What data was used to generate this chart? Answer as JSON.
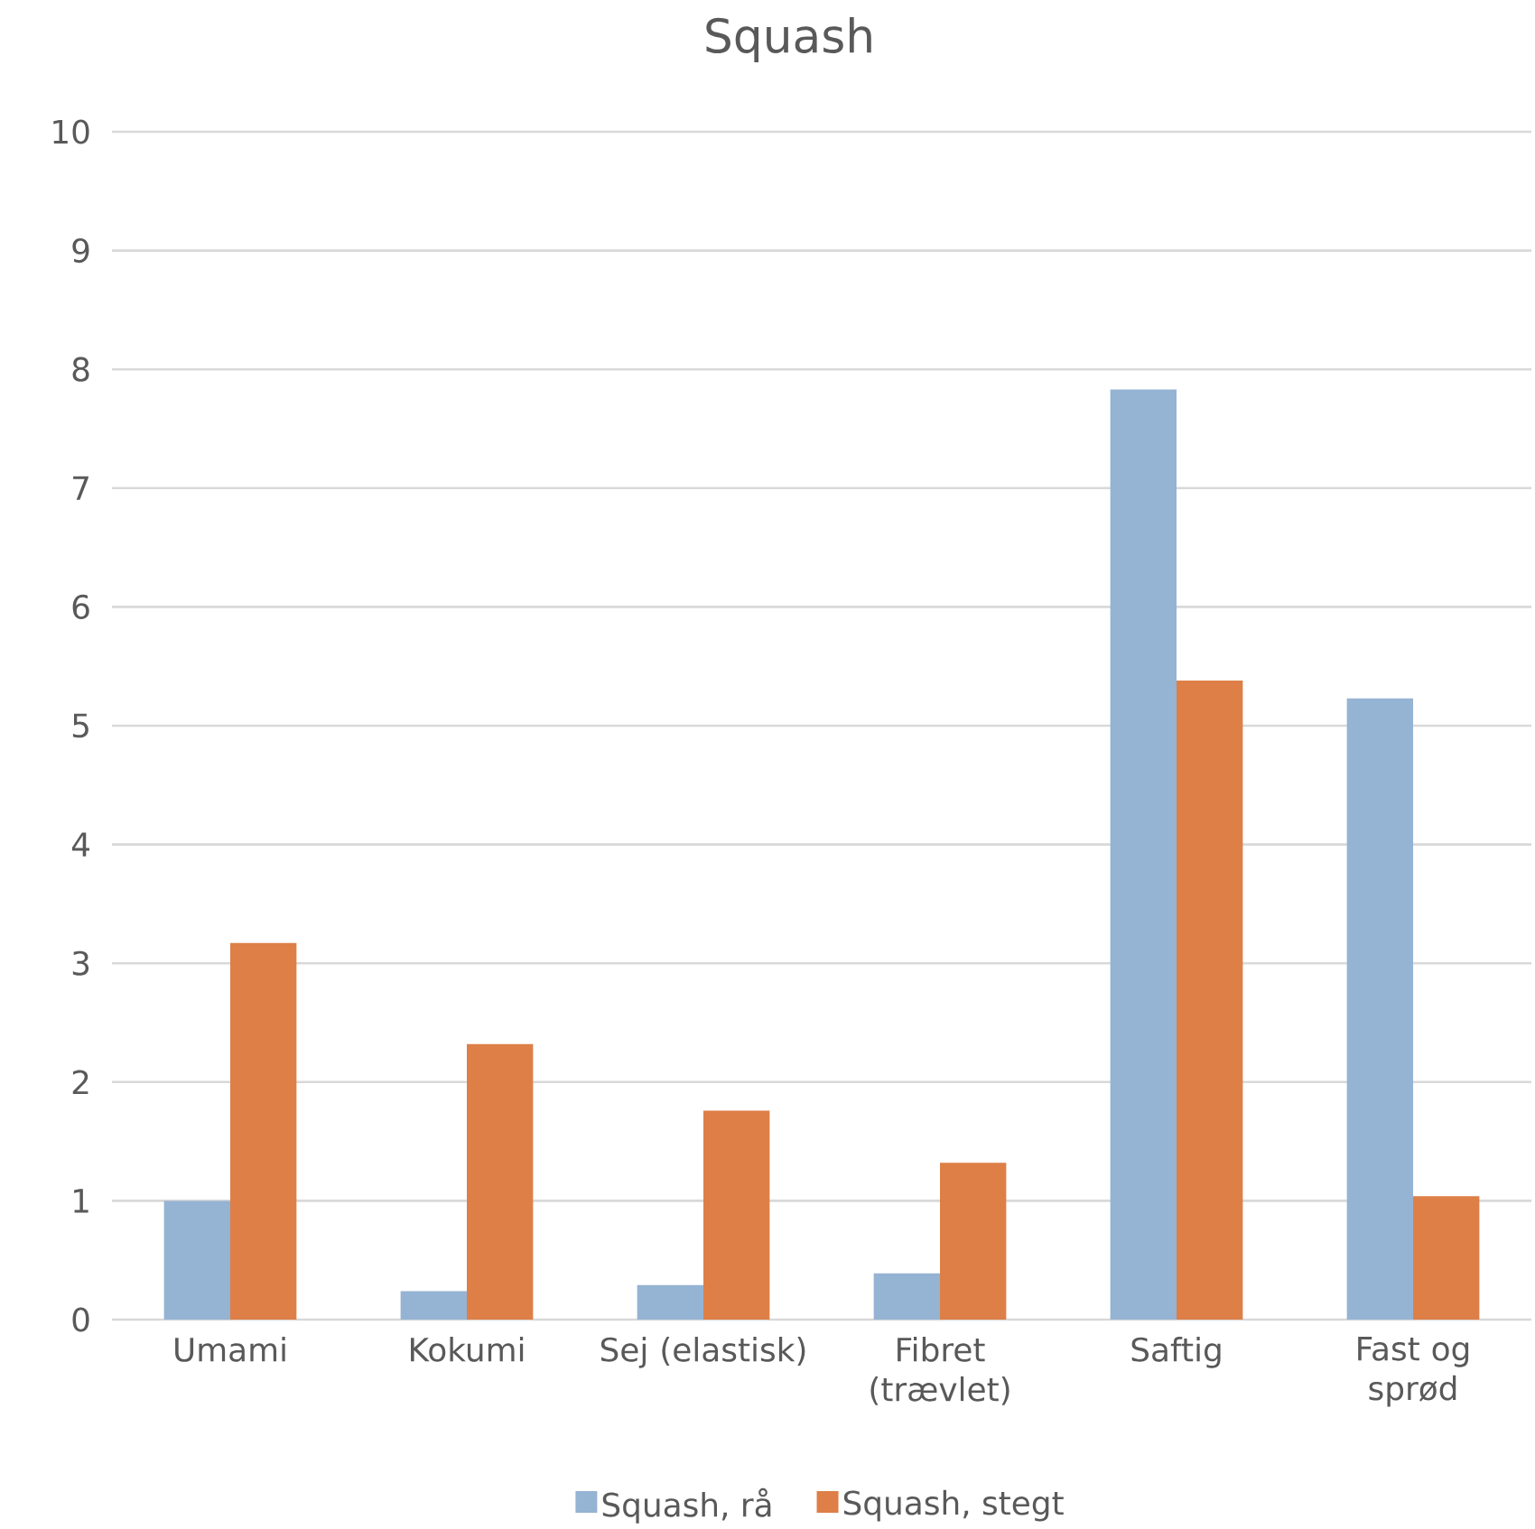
{
  "chart_data": {
    "type": "bar",
    "title": "Squash",
    "categories": [
      "Umami",
      "Kokumi",
      "Sej (elastisk)",
      "Fibret (trævlet)",
      "Saftig",
      "Fast og sprød"
    ],
    "series": [
      {
        "name": "Squash, rå",
        "color": "#95b3d3",
        "values": [
          1.0,
          0.24,
          0.29,
          0.39,
          7.83,
          5.23
        ]
      },
      {
        "name": "Squash, stegt",
        "color": "#dd7f47",
        "values": [
          3.17,
          2.32,
          1.76,
          1.32,
          5.38,
          1.04
        ]
      }
    ],
    "ylim": [
      0,
      10
    ],
    "yticks": [
      0,
      1,
      2,
      3,
      4,
      5,
      6,
      7,
      8,
      9,
      10
    ],
    "grid": "y",
    "legend": "bottom"
  }
}
